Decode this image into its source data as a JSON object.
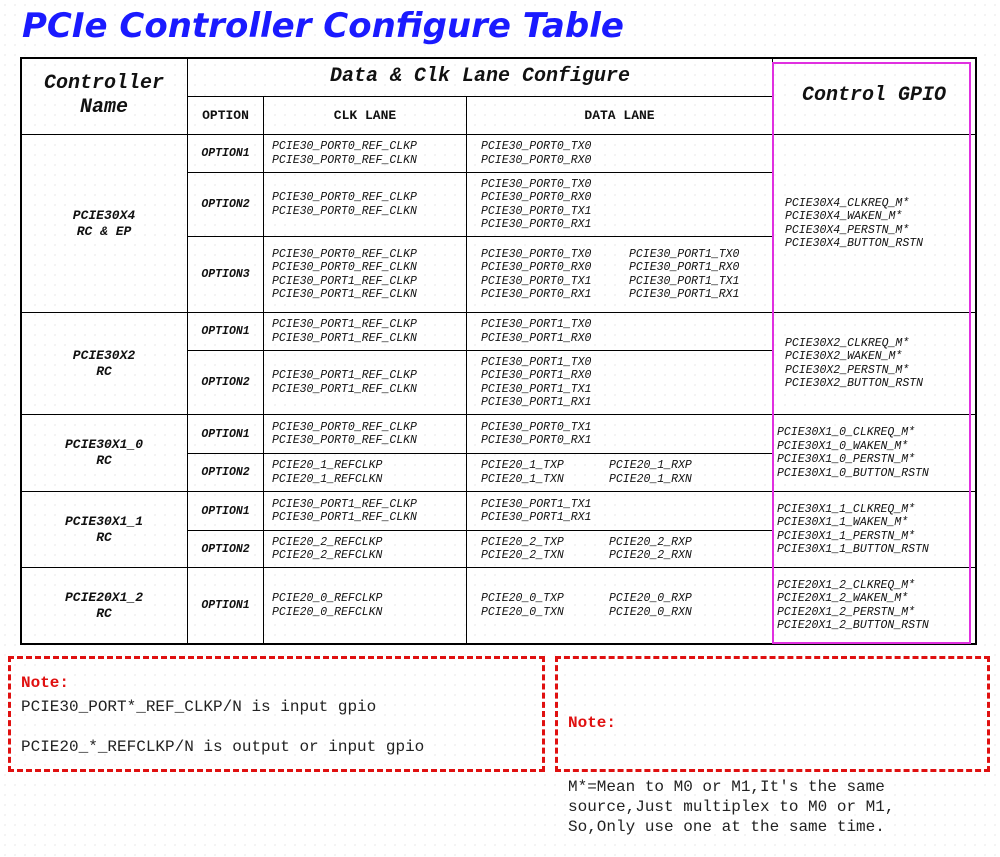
{
  "title": "PCIe Controller Configure Table",
  "headers": {
    "controller": "Controller\nName",
    "group": "Data & Clk Lane Configure",
    "option": "OPTION",
    "clk": "CLK LANE",
    "data": "DATA LANE",
    "gpio": "Control GPIO"
  },
  "colors": {
    "title": "#1a1aff",
    "gpio_box": "#e030e0",
    "note": "#e01010"
  },
  "controllers": [
    {
      "name": "PCIE30X4\nRC & EP",
      "gpio": "PCIE30X4_CLKREQ_M*\nPCIE30X4_WAKEN_M*\nPCIE30X4_PERSTN_M*\nPCIE30X4_BUTTON_RSTN",
      "options": [
        {
          "option": "OPTION1",
          "clk": "PCIE30_PORT0_REF_CLKP\nPCIE30_PORT0_REF_CLKN",
          "data": "PCIE30_PORT0_TX0\nPCIE30_PORT0_RX0",
          "data2": ""
        },
        {
          "option": "OPTION2",
          "clk": "PCIE30_PORT0_REF_CLKP\nPCIE30_PORT0_REF_CLKN",
          "data": "PCIE30_PORT0_TX0\nPCIE30_PORT0_RX0\nPCIE30_PORT0_TX1\nPCIE30_PORT0_RX1",
          "data2": ""
        },
        {
          "option": "OPTION3",
          "clk": "PCIE30_PORT0_REF_CLKP\nPCIE30_PORT0_REF_CLKN\nPCIE30_PORT1_REF_CLKP\nPCIE30_PORT1_REF_CLKN",
          "data": "PCIE30_PORT0_TX0\nPCIE30_PORT0_RX0\nPCIE30_PORT0_TX1\nPCIE30_PORT0_RX1",
          "data2": "PCIE30_PORT1_TX0\nPCIE30_PORT1_RX0\nPCIE30_PORT1_TX1\nPCIE30_PORT1_RX1"
        }
      ]
    },
    {
      "name": "PCIE30X2\nRC",
      "gpio": "PCIE30X2_CLKREQ_M*\nPCIE30X2_WAKEN_M*\nPCIE30X2_PERSTN_M*\nPCIE30X2_BUTTON_RSTN",
      "options": [
        {
          "option": "OPTION1",
          "clk": "PCIE30_PORT1_REF_CLKP\nPCIE30_PORT1_REF_CLKN",
          "data": "PCIE30_PORT1_TX0\nPCIE30_PORT1_RX0",
          "data2": ""
        },
        {
          "option": "OPTION2",
          "clk": "PCIE30_PORT1_REF_CLKP\nPCIE30_PORT1_REF_CLKN",
          "data": "PCIE30_PORT1_TX0\nPCIE30_PORT1_RX0\nPCIE30_PORT1_TX1\nPCIE30_PORT1_RX1",
          "data2": ""
        }
      ]
    },
    {
      "name": "PCIE30X1_0\nRC",
      "gpio": "PCIE30X1_0_CLKREQ_M*\nPCIE30X1_0_WAKEN_M*\nPCIE30X1_0_PERSTN_M*\nPCIE30X1_0_BUTTON_RSTN",
      "options": [
        {
          "option": "OPTION1",
          "clk": "PCIE30_PORT0_REF_CLKP\nPCIE30_PORT0_REF_CLKN",
          "data": "PCIE30_PORT0_TX1\nPCIE30_PORT0_RX1",
          "data2": ""
        },
        {
          "option": "OPTION2",
          "clk": "PCIE20_1_REFCLKP\nPCIE20_1_REFCLKN",
          "data": "PCIE20_1_TXP\nPCIE20_1_TXN",
          "data2": "PCIE20_1_RXP\nPCIE20_1_RXN"
        }
      ]
    },
    {
      "name": "PCIE30X1_1\nRC",
      "gpio": "PCIE30X1_1_CLKREQ_M*\nPCIE30X1_1_WAKEN_M*\nPCIE30X1_1_PERSTN_M*\nPCIE30X1_1_BUTTON_RSTN",
      "options": [
        {
          "option": "OPTION1",
          "clk": "PCIE30_PORT1_REF_CLKP\nPCIE30_PORT1_REF_CLKN",
          "data": "PCIE30_PORT1_TX1\nPCIE30_PORT1_RX1",
          "data2": ""
        },
        {
          "option": "OPTION2",
          "clk": "PCIE20_2_REFCLKP\nPCIE20_2_REFCLKN",
          "data": "PCIE20_2_TXP\nPCIE20_2_TXN",
          "data2": "PCIE20_2_RXP\nPCIE20_2_RXN"
        }
      ]
    },
    {
      "name": "PCIE20X1_2\nRC",
      "gpio": "PCIE20X1_2_CLKREQ_M*\nPCIE20X1_2_WAKEN_M*\nPCIE20X1_2_PERSTN_M*\nPCIE20X1_2_BUTTON_RSTN",
      "options": [
        {
          "option": "OPTION1",
          "clk": "PCIE20_0_REFCLKP\nPCIE20_0_REFCLKN",
          "data": "PCIE20_0_TXP\nPCIE20_0_TXN",
          "data2": "PCIE20_0_RXP\nPCIE20_0_RXN"
        }
      ]
    }
  ],
  "notes": [
    {
      "heading": "Note:",
      "lines": [
        "PCIE30_PORT*_REF_CLKP/N is input gpio",
        "PCIE20_*_REFCLKP/N is output or input gpio"
      ]
    },
    {
      "heading": "Note:",
      "lines": [
        "M*=Mean to M0 or M1,It's the same\nsource,Just multiplex to M0 or M1,\nSo,Only use one at the same time."
      ]
    }
  ]
}
